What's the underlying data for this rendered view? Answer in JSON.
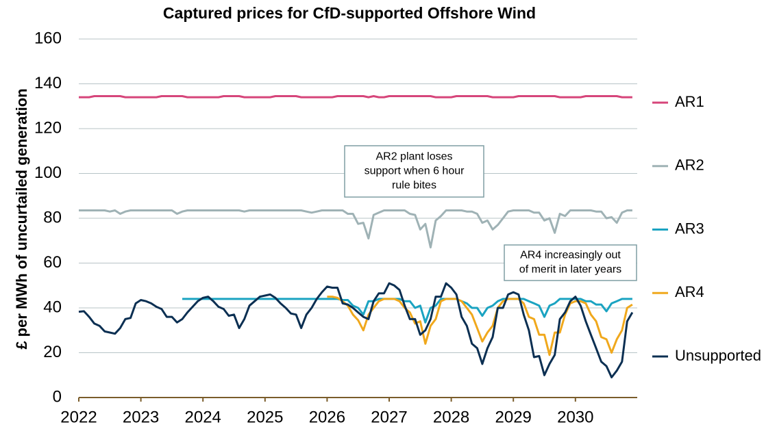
{
  "chart_data": {
    "type": "line",
    "title": "Captured prices for CfD-supported Offshore Wind",
    "y_label": "£ per MWh of uncurtailed generation",
    "categories": [
      "2022",
      null,
      null,
      null,
      null,
      null,
      null,
      null,
      null,
      null,
      null,
      null,
      "2023",
      null,
      null,
      null,
      null,
      null,
      null,
      null,
      null,
      null,
      null,
      null,
      "2024",
      null,
      null,
      null,
      null,
      null,
      null,
      null,
      null,
      null,
      null,
      null,
      "2025",
      null,
      null,
      null,
      null,
      null,
      null,
      null,
      null,
      null,
      null,
      null,
      "2026",
      null,
      null,
      null,
      null,
      null,
      null,
      null,
      null,
      null,
      null,
      null,
      "2027",
      null,
      null,
      null,
      null,
      null,
      null,
      null,
      null,
      null,
      null,
      null,
      "2028",
      null,
      null,
      null,
      null,
      null,
      null,
      null,
      null,
      null,
      null,
      null,
      "2029",
      null,
      null,
      null,
      null,
      null,
      null,
      null,
      null,
      null,
      null,
      null,
      "2030",
      null,
      null,
      null,
      null,
      null,
      null,
      null,
      null,
      null,
      null,
      null
    ],
    "ylim": [
      0,
      160
    ],
    "yticks": [
      0,
      20,
      40,
      60,
      80,
      100,
      120,
      140,
      160
    ],
    "grid": true,
    "legend": "right",
    "series": [
      {
        "name": "AR1",
        "color": "#d6457a",
        "values": [
          134,
          134,
          134,
          134.5,
          134.5,
          134.5,
          134.5,
          134.5,
          134.5,
          134,
          134,
          134,
          134,
          134,
          134,
          134,
          134.5,
          134.5,
          134.5,
          134.5,
          134.5,
          134,
          134,
          134,
          134,
          134,
          134,
          134,
          134.5,
          134.5,
          134.5,
          134.5,
          134,
          134,
          134,
          134,
          134,
          134,
          134.5,
          134.5,
          134.5,
          134.5,
          134.5,
          134,
          134,
          134,
          134,
          134,
          134,
          134,
          134.5,
          134.5,
          134.5,
          134.5,
          134.5,
          134.5,
          134,
          134.5,
          134,
          134,
          134.5,
          134.5,
          134.5,
          134.5,
          134.5,
          134.5,
          134.5,
          134.5,
          134.5,
          134,
          134,
          134,
          134,
          134.5,
          134.5,
          134.5,
          134.5,
          134.5,
          134.5,
          134.5,
          134,
          134,
          134,
          134,
          134,
          134.5,
          134.5,
          134.5,
          134.5,
          134.5,
          134.5,
          134.5,
          134.5,
          134,
          134,
          134,
          134,
          134,
          134.5,
          134.5,
          134.5,
          134.5,
          134.5,
          134.5,
          134.5,
          134,
          134,
          134
        ]
      },
      {
        "name": "AR2",
        "color": "#9fb2b5",
        "values": [
          83.5,
          83.5,
          83.5,
          83.5,
          83.5,
          83.5,
          83,
          83.5,
          82,
          83,
          83.5,
          83.5,
          83.5,
          83.5,
          83.5,
          83.5,
          83.5,
          83.5,
          83.5,
          82,
          83,
          83.5,
          83.5,
          83.5,
          83.5,
          83.5,
          83.5,
          83.5,
          83.5,
          83.5,
          83.5,
          83.5,
          83,
          83.5,
          83.5,
          83.5,
          83.5,
          83.5,
          83.5,
          83.5,
          83.5,
          83.5,
          83.5,
          83.5,
          83,
          82.5,
          83,
          83.5,
          83.5,
          83.5,
          83.5,
          83.5,
          82,
          82,
          77.5,
          78,
          71,
          81.5,
          82.5,
          83.5,
          83.5,
          83.5,
          83.5,
          83.5,
          82,
          81.5,
          75,
          77.5,
          67,
          79,
          81,
          83.5,
          83.5,
          83.5,
          83.5,
          83,
          83,
          82,
          78,
          79,
          75,
          77,
          80,
          83,
          83.5,
          83.5,
          83.5,
          83.5,
          82.5,
          82.5,
          79,
          80,
          73.5,
          82,
          81,
          83.5,
          83.5,
          83.5,
          83.5,
          83.5,
          83,
          83,
          80,
          80.5,
          78,
          82.5,
          83.5,
          83.5
        ]
      },
      {
        "name": "AR3",
        "color": "#1aa3c1",
        "values": [
          null,
          null,
          null,
          null,
          null,
          null,
          null,
          null,
          null,
          null,
          null,
          null,
          null,
          null,
          null,
          null,
          null,
          null,
          null,
          null,
          44,
          44,
          44,
          44,
          44,
          44,
          44,
          44,
          44,
          44,
          44,
          44,
          44,
          44,
          44,
          44,
          44,
          44,
          44,
          44,
          44,
          44,
          44,
          44,
          44,
          44,
          44,
          44,
          44,
          44,
          44,
          43.5,
          43.5,
          41,
          40,
          37,
          43,
          43,
          44,
          44,
          44,
          44,
          44,
          43,
          43,
          40,
          41,
          33.5,
          40,
          41,
          44,
          44,
          44,
          44,
          43,
          42,
          40,
          40,
          36.5,
          40,
          41,
          43,
          44,
          44,
          44,
          44,
          44,
          43,
          42,
          41,
          36,
          41,
          42,
          44,
          44,
          44,
          44,
          44,
          43,
          43,
          41.5,
          41.5,
          38.5,
          42,
          43,
          44,
          44,
          44
        ]
      },
      {
        "name": "AR4",
        "color": "#f0a81c",
        "values": [
          null,
          null,
          null,
          null,
          null,
          null,
          null,
          null,
          null,
          null,
          null,
          null,
          null,
          null,
          null,
          null,
          null,
          null,
          null,
          null,
          null,
          null,
          null,
          null,
          null,
          null,
          null,
          null,
          null,
          null,
          null,
          null,
          null,
          null,
          null,
          null,
          null,
          null,
          null,
          null,
          null,
          null,
          null,
          null,
          null,
          null,
          null,
          null,
          45,
          45,
          44.5,
          43,
          41,
          37,
          34.5,
          30,
          37,
          40,
          43,
          44,
          44,
          44,
          43,
          40,
          38,
          33,
          34,
          24,
          32,
          35,
          43,
          44,
          44,
          44,
          43,
          40,
          37,
          31,
          25,
          29,
          32,
          40,
          43,
          44,
          44,
          44,
          42,
          36,
          35,
          28,
          28,
          19,
          29,
          29,
          37,
          42,
          43,
          43,
          42,
          37,
          34,
          27,
          26,
          20,
          26,
          30,
          40,
          41.5
        ]
      },
      {
        "name": "Unsupported",
        "color": "#0b2f52",
        "values": [
          38.3,
          38.5,
          36,
          33,
          32,
          29.5,
          29,
          28.5,
          31,
          35,
          35.5,
          42,
          43.5,
          43,
          42,
          40.5,
          39.5,
          36,
          36,
          33.5,
          35,
          38,
          40.5,
          43,
          44.5,
          45,
          43,
          40.5,
          39.5,
          36.5,
          37,
          31,
          35,
          41,
          43,
          45,
          45.5,
          46,
          44.5,
          42,
          40,
          37.5,
          37,
          31,
          37,
          40,
          44,
          47,
          49.5,
          49,
          49,
          42,
          41.5,
          40,
          38,
          36,
          35,
          43,
          46.5,
          46.5,
          51,
          50,
          48,
          41,
          35,
          35,
          28,
          30,
          35,
          45,
          45,
          51,
          49,
          46,
          36,
          32,
          24,
          22,
          15,
          22,
          27,
          40,
          40,
          46,
          47,
          46,
          37,
          30,
          18,
          18.5,
          10,
          15,
          19,
          35,
          38,
          43,
          45,
          41,
          34,
          28,
          22,
          16,
          14,
          9,
          12,
          16,
          34,
          38
        ]
      }
    ],
    "annotations": [
      {
        "lines": [
          "AR2 plant loses",
          "support when 6 hour",
          "rule bites"
        ]
      },
      {
        "lines": [
          "AR4 increasingly out",
          "of merit in later years"
        ]
      }
    ]
  }
}
